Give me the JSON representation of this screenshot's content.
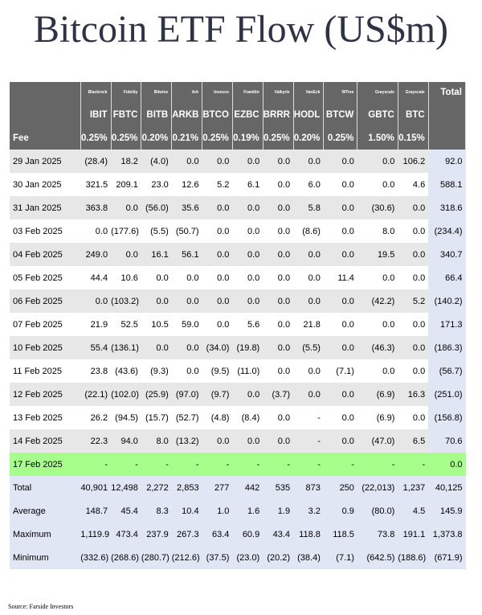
{
  "title": "Bitcoin ETF Flow (US$m)",
  "issuers": [
    "Blackrock",
    "Fidelity",
    "Bitwise",
    "Ark",
    "Invesco",
    "Franklin",
    "Valkyrie",
    "VanEck",
    "WTree",
    "Grayscale",
    "Grayscale"
  ],
  "tickers": [
    "IBIT",
    "FBTC",
    "BITB",
    "ARKB",
    "BTCO",
    "EZBC",
    "BRRR",
    "HODL",
    "BTCW",
    "GBTC",
    "BTC"
  ],
  "total_label": "Total",
  "fee_label": "Fee",
  "fees": [
    "0.25%",
    "0.25%",
    "0.20%",
    "0.21%",
    "0.25%",
    "0.19%",
    "0.25%",
    "0.20%",
    "0.25%",
    "1.50%",
    "0.15%"
  ],
  "rows": [
    {
      "date": "29 Jan 2025",
      "values": [
        "(28.4)",
        "18.2",
        "(4.0)",
        "0.0",
        "0.0",
        "0.0",
        "0.0",
        "0.0",
        "0.0",
        "0.0",
        "106.2"
      ],
      "total": "92.0"
    },
    {
      "date": "30 Jan 2025",
      "values": [
        "321.5",
        "209.1",
        "23.0",
        "12.6",
        "5.2",
        "6.1",
        "0.0",
        "6.0",
        "0.0",
        "0.0",
        "4.6"
      ],
      "total": "588.1"
    },
    {
      "date": "31 Jan 2025",
      "values": [
        "363.8",
        "0.0",
        "(56.0)",
        "35.6",
        "0.0",
        "0.0",
        "0.0",
        "5.8",
        "0.0",
        "(30.6)",
        "0.0"
      ],
      "total": "318.6"
    },
    {
      "date": "03 Feb 2025",
      "values": [
        "0.0",
        "(177.6)",
        "(5.5)",
        "(50.7)",
        "0.0",
        "0.0",
        "0.0",
        "(8.6)",
        "0.0",
        "8.0",
        "0.0"
      ],
      "total": "(234.4)"
    },
    {
      "date": "04 Feb 2025",
      "values": [
        "249.0",
        "0.0",
        "16.1",
        "56.1",
        "0.0",
        "0.0",
        "0.0",
        "0.0",
        "0.0",
        "19.5",
        "0.0"
      ],
      "total": "340.7"
    },
    {
      "date": "05 Feb 2025",
      "values": [
        "44.4",
        "10.6",
        "0.0",
        "0.0",
        "0.0",
        "0.0",
        "0.0",
        "0.0",
        "11.4",
        "0.0",
        "0.0"
      ],
      "total": "66.4"
    },
    {
      "date": "06 Feb 2025",
      "values": [
        "0.0",
        "(103.2)",
        "0.0",
        "0.0",
        "0.0",
        "0.0",
        "0.0",
        "0.0",
        "0.0",
        "(42.2)",
        "5.2"
      ],
      "total": "(140.2)"
    },
    {
      "date": "07 Feb 2025",
      "values": [
        "21.9",
        "52.5",
        "10.5",
        "59.0",
        "0.0",
        "5.6",
        "0.0",
        "21.8",
        "0.0",
        "0.0",
        "0.0"
      ],
      "total": "171.3"
    },
    {
      "date": "10 Feb 2025",
      "values": [
        "55.4",
        "(136.1)",
        "0.0",
        "0.0",
        "(34.0)",
        "(19.8)",
        "0.0",
        "(5.5)",
        "0.0",
        "(46.3)",
        "0.0"
      ],
      "total": "(186.3)"
    },
    {
      "date": "11 Feb 2025",
      "values": [
        "23.8",
        "(43.6)",
        "(9.3)",
        "0.0",
        "(9.5)",
        "(11.0)",
        "0.0",
        "0.0",
        "(7.1)",
        "0.0",
        "0.0"
      ],
      "total": "(56.7)"
    },
    {
      "date": "12 Feb 2025",
      "values": [
        "(22.1)",
        "(102.0)",
        "(25.9)",
        "(97.0)",
        "(9.7)",
        "0.0",
        "(3.7)",
        "0.0",
        "0.0",
        "(6.9)",
        "16.3"
      ],
      "total": "(251.0)"
    },
    {
      "date": "13 Feb 2025",
      "values": [
        "26.2",
        "(94.5)",
        "(15.7)",
        "(52.7)",
        "(4.8)",
        "(8.4)",
        "0.0",
        "-",
        "0.0",
        "(6.9)",
        "0.0"
      ],
      "total": "(156.8)"
    },
    {
      "date": "14 Feb 2025",
      "values": [
        "22.3",
        "94.0",
        "8.0",
        "(13.2)",
        "0.0",
        "0.0",
        "0.0",
        "-",
        "0.0",
        "(47.0)",
        "6.5"
      ],
      "total": "70.6"
    },
    {
      "date": "17 Feb 2025",
      "values": [
        "-",
        "-",
        "-",
        "-",
        "-",
        "-",
        "-",
        "-",
        "-",
        "-",
        "-"
      ],
      "total": "0.0",
      "highlight": true
    }
  ],
  "summary": [
    {
      "label": "Total",
      "values": [
        "40,901",
        "12,498",
        "2,272",
        "2,853",
        "277",
        "442",
        "535",
        "873",
        "250",
        "(22,013)",
        "1,237"
      ],
      "total": "40,125"
    },
    {
      "label": "Average",
      "values": [
        "148.7",
        "45.4",
        "8.3",
        "10.4",
        "1.0",
        "1.6",
        "1.9",
        "3.2",
        "0.9",
        "(80.0)",
        "4.5"
      ],
      "total": "145.9"
    },
    {
      "label": "Maximum",
      "values": [
        "1,119.9",
        "473.4",
        "237.9",
        "267.3",
        "63.4",
        "60.9",
        "43.4",
        "118.8",
        "118.5",
        "73.8",
        "191.1"
      ],
      "total": "1,373.8"
    },
    {
      "label": "Minimum",
      "values": [
        "(332.6)",
        "(268.6)",
        "(280.7)",
        "(212.6)",
        "(37.5)",
        "(23.0)",
        "(20.2)",
        "(38.4)",
        "(7.1)",
        "(642.5)",
        "(188.6)"
      ],
      "total": "(671.9)"
    }
  ],
  "source": "Source: Farside Investors",
  "colors": {
    "header_bg": "#666666",
    "stripe": "#e7e7e7",
    "highlight": "#a6ff8a",
    "summary_bg": "#e0e6f4",
    "negative": "#d00000",
    "title": "#2f3346"
  }
}
